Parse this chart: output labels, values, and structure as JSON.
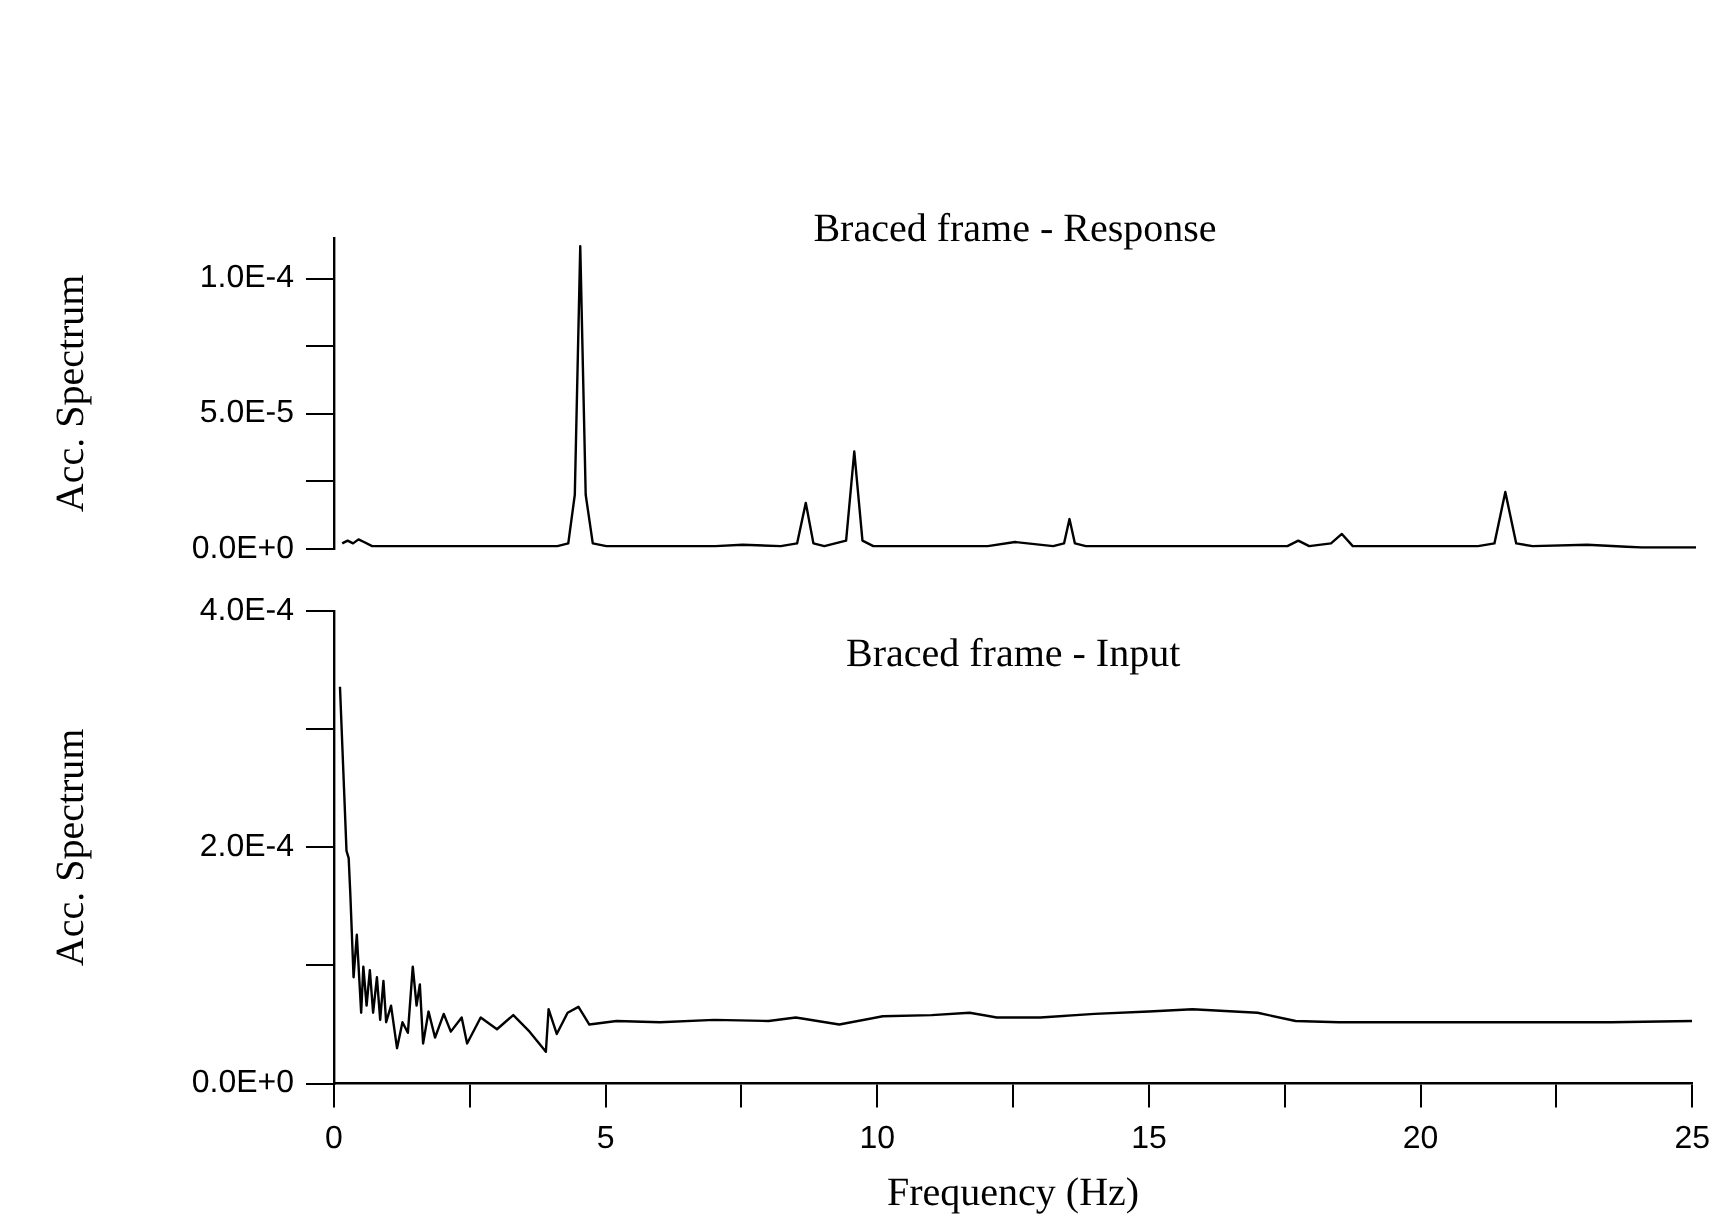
{
  "chart_data": [
    {
      "type": "line",
      "title": "Braced frame - Response",
      "ylabel": "Acc. Spectrum",
      "xlim": [
        0,
        25
      ],
      "ylim": [
        0,
        0.000115
      ],
      "yticks": [
        {
          "value": 0,
          "label": "0.0E+0"
        },
        {
          "value": 2.5e-05,
          "label": null
        },
        {
          "value": 5e-05,
          "label": "5.0E-5"
        },
        {
          "value": 7.5e-05,
          "label": null
        },
        {
          "value": 0.0001,
          "label": "1.0E-4"
        }
      ],
      "tick_labels": "y",
      "grid": false,
      "legend": false,
      "marker": "none",
      "line_style": "solid",
      "series": [
        {
          "color": "#000000",
          "x": [
            0.15,
            0.25,
            0.35,
            0.45,
            0.55,
            0.7,
            0.9,
            1.5,
            2.5,
            3.5,
            4.1,
            4.3,
            4.42,
            4.52,
            4.62,
            4.75,
            5,
            6,
            7,
            7.5,
            8.2,
            8.5,
            8.66,
            8.8,
            9.0,
            9.2,
            9.4,
            9.55,
            9.7,
            9.9,
            11,
            12,
            12.5,
            13.2,
            13.4,
            13.5,
            13.6,
            13.8,
            15,
            16,
            17,
            17.5,
            17.7,
            17.9,
            18.3,
            18.5,
            18.7,
            19,
            20,
            21,
            21.3,
            21.5,
            21.7,
            22,
            23,
            24,
            25
          ],
          "values": [
            2e-06,
            3e-06,
            2e-06,
            3.5e-06,
            2.5e-06,
            1e-06,
            1e-06,
            1e-06,
            1e-06,
            1e-06,
            1e-06,
            2e-06,
            2e-05,
            0.000112,
            2e-05,
            2e-06,
            1e-06,
            1e-06,
            1e-06,
            1.5e-06,
            1e-06,
            2e-06,
            1.7e-05,
            2e-06,
            1e-06,
            2e-06,
            3e-06,
            3.6e-05,
            3e-06,
            1e-06,
            1e-06,
            1e-06,
            2.5e-06,
            1e-06,
            2e-06,
            1.1e-05,
            2e-06,
            1e-06,
            1e-06,
            1e-06,
            1e-06,
            1e-06,
            3e-06,
            1e-06,
            2e-06,
            5.5e-06,
            1e-06,
            1e-06,
            1e-06,
            1e-06,
            2e-06,
            2.1e-05,
            2e-06,
            1e-06,
            1.5e-06,
            5e-07,
            5e-07
          ]
        }
      ]
    },
    {
      "type": "line",
      "title": "Braced frame - Input",
      "xlabel": "Frequency (Hz)",
      "ylabel": "Acc. Spectrum",
      "xlim": [
        0,
        25
      ],
      "ylim": [
        0,
        0.0004
      ],
      "xticks": [
        0,
        {
          "value": 2.5,
          "label": null
        },
        5,
        {
          "value": 7.5,
          "label": null
        },
        10,
        {
          "value": 12.5,
          "label": null
        },
        15,
        {
          "value": 17.5,
          "label": null
        },
        20,
        {
          "value": 22.5,
          "label": null
        },
        25
      ],
      "yticks": [
        {
          "value": 0,
          "label": "0.0E+0"
        },
        {
          "value": 0.0001,
          "label": null
        },
        {
          "value": 0.0002,
          "label": "2.0E-4"
        },
        {
          "value": 0.0003,
          "label": null
        },
        {
          "value": 0.0004,
          "label": "4.0E-4"
        }
      ],
      "grid": false,
      "legend": false,
      "marker": "none",
      "line_style": "solid",
      "series": [
        {
          "color": "#000000",
          "x": [
            0.11,
            0.23,
            0.27,
            0.3,
            0.36,
            0.42,
            0.5,
            0.54,
            0.6,
            0.66,
            0.72,
            0.79,
            0.85,
            0.91,
            0.96,
            1.05,
            1.16,
            1.26,
            1.36,
            1.45,
            1.52,
            1.58,
            1.64,
            1.74,
            1.86,
            2.02,
            2.15,
            2.35,
            2.45,
            2.7,
            3.0,
            3.3,
            3.6,
            3.9,
            3.95,
            4.1,
            4.3,
            4.5,
            4.7,
            5.2,
            6,
            7,
            8,
            8.5,
            9.3,
            10.1,
            11,
            11.7,
            12.2,
            13,
            14,
            15,
            15.8,
            17,
            17.7,
            18.5,
            20,
            20.8,
            22,
            23.5,
            25
          ],
          "values": [
            0.000336,
            0.000197,
            0.000191,
            0.000161,
            9e-05,
            0.000126,
            6e-05,
            9.9e-05,
            6.6e-05,
            9.6e-05,
            6e-05,
            9e-05,
            5.4e-05,
            8.7e-05,
            5.2e-05,
            6.6e-05,
            3e-05,
            5.2e-05,
            4.3e-05,
            9.9e-05,
            6.6e-05,
            8.4e-05,
            3.4e-05,
            6.1e-05,
            3.9e-05,
            5.9e-05,
            4.4e-05,
            5.6e-05,
            3.4e-05,
            5.6e-05,
            4.6e-05,
            5.8e-05,
            4.4e-05,
            2.7e-05,
            6.3e-05,
            4.2e-05,
            6e-05,
            6.5e-05,
            5e-05,
            5.3e-05,
            5.2e-05,
            5.4e-05,
            5.3e-05,
            5.6e-05,
            5e-05,
            5.7e-05,
            5.8e-05,
            6e-05,
            5.6e-05,
            5.6e-05,
            5.9e-05,
            6.1e-05,
            6.3e-05,
            6e-05,
            5.3e-05,
            5.2e-05,
            5.2e-05,
            5.2e-05,
            5.2e-05,
            5.2e-05,
            5.3e-05
          ]
        }
      ]
    }
  ]
}
